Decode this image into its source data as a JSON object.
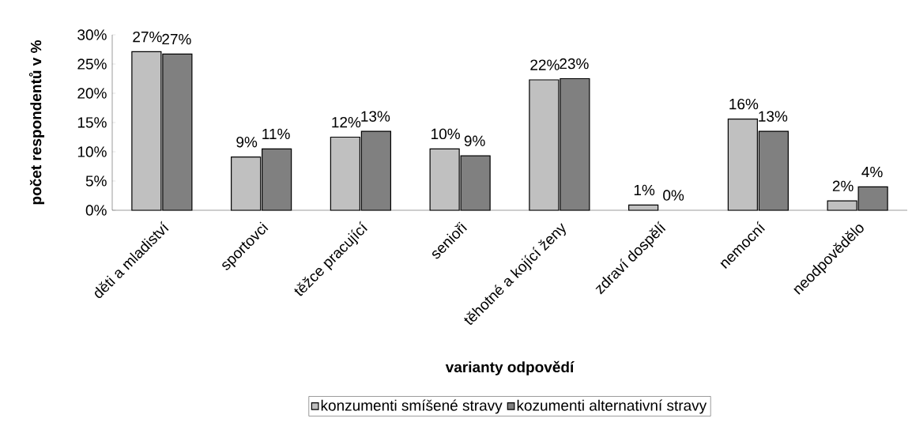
{
  "chart_data": {
    "type": "bar",
    "xlabel": "varianty odpovědí",
    "ylabel": "počet respondentů v %",
    "categories": [
      "děti a mladiství",
      "sportovci",
      "těžce pracující",
      "senioři",
      "těhotné a kojící ženy",
      "zdraví dospělí",
      "nemocní",
      "neodpovědělo"
    ],
    "series": [
      {
        "name": "konzumenti smíšené stravy",
        "color": "#c0c0c0",
        "values": [
          27.1,
          9.1,
          12.5,
          10.5,
          22.3,
          0.9,
          15.6,
          1.6
        ],
        "value_labels": [
          "27%",
          "9%",
          "12%",
          "10%",
          "22%",
          "1%",
          "16%",
          "2%"
        ]
      },
      {
        "name": "kozumenti alternativní stravy",
        "color": "#808080",
        "values": [
          26.7,
          10.5,
          13.5,
          9.3,
          22.5,
          0,
          13.5,
          4.0
        ],
        "value_labels": [
          "27%",
          "11%",
          "13%",
          "9%",
          "23%",
          "0%",
          "13%",
          "4%"
        ]
      }
    ],
    "ylim": [
      0,
      30
    ],
    "yticks": [
      {
        "value": 0,
        "label": "0%"
      },
      {
        "value": 5,
        "label": "5%"
      },
      {
        "value": 10,
        "label": "10%"
      },
      {
        "value": 15,
        "label": "15%"
      },
      {
        "value": 20,
        "label": "20%"
      },
      {
        "value": 25,
        "label": "25%"
      },
      {
        "value": 30,
        "label": "30%"
      }
    ],
    "legend": "bottom",
    "grid": false
  }
}
